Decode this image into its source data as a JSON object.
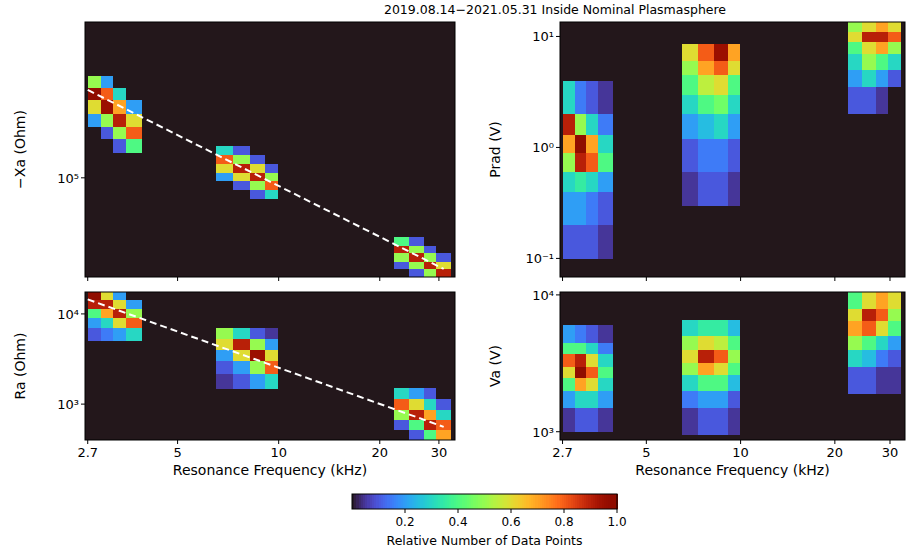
{
  "figure": {
    "title": "2019.08.14−2021.05.31  Inside Nominal Plasmasphere",
    "colorbar": {
      "label": "Relative Number of Data Points",
      "range": [
        0,
        1
      ],
      "ticks": [
        0.2,
        0.4,
        0.6,
        0.8,
        {
          "value": 1,
          "label": "1.0"
        }
      ]
    }
  },
  "chart_data": [
    {
      "type": "heatmap",
      "y_label": "−Xa (Ohm)",
      "log": true,
      "tick_labels": "y",
      "xlim": [
        2.65,
        33.5
      ],
      "xticks": [
        2.7,
        5,
        10,
        20,
        30
      ],
      "ylim": [
        26000,
        830000
      ],
      "yticks": [
        {
          "value": 100000,
          "label": "10⁵"
        }
      ],
      "heatmap": {
        "blocks": [
          {
            "x_bins": [
              2.7,
              2.95,
              3.2,
              3.5,
              3.9
            ],
            "y_bins": [
              140000,
              170000,
              200000,
              240000,
              290000,
              340000,
              400000
            ],
            "z": [
              [
                0,
                0,
                0.1,
                0.4
              ],
              [
                0,
                0.1,
                0.5,
                0.8
              ],
              [
                0.2,
                0.5,
                0.9,
                0.6
              ],
              [
                0.6,
                0.95,
                0.7,
                0.2
              ],
              [
                1.0,
                0.8,
                0.3,
                0
              ],
              [
                0.5,
                0.2,
                0,
                0
              ]
            ]
          },
          {
            "x_bins": [
              6.5,
              7.3,
              8.2,
              9.1,
              9.9
            ],
            "y_bins": [
              75000,
              85000,
              96000,
              108000,
              122000,
              138000,
              155000
            ],
            "z": [
              [
                0,
                0,
                0.1,
                0.3
              ],
              [
                0,
                0.1,
                0.5,
                0.8
              ],
              [
                0.2,
                0.6,
                0.9,
                0.5
              ],
              [
                0.6,
                0.9,
                0.6,
                0.1
              ],
              [
                0.8,
                0.5,
                0.1,
                0
              ],
              [
                0.3,
                0.1,
                0,
                0
              ]
            ]
          },
          {
            "x_bins": [
              22,
              24.5,
              27,
              29.5,
              32.5
            ],
            "y_bins": [
              26000,
              29000,
              32000,
              36000,
              40000,
              45000
            ],
            "z": [
              [
                0,
                0.1,
                0.5,
                0.9
              ],
              [
                0.1,
                0.5,
                0.9,
                0.6
              ],
              [
                0.5,
                0.9,
                0.5,
                0.1
              ],
              [
                0.9,
                0.5,
                0.1,
                0
              ],
              [
                0.4,
                0.1,
                0,
                0
              ]
            ]
          }
        ]
      },
      "series": [
        {
          "type": "line",
          "color": "#ffffff",
          "line_style": "dashed",
          "x": [
            2.7,
            31
          ],
          "values": [
            330000,
            29000
          ]
        }
      ]
    },
    {
      "type": "heatmap",
      "y_label": "Prad (V)",
      "log": true,
      "tick_labels": "y",
      "xlim": [
        2.65,
        33.5
      ],
      "xticks": [
        2.7,
        5,
        10,
        20,
        30
      ],
      "ylim": [
        0.068,
        13.5
      ],
      "yticks": [
        {
          "value": 0.1,
          "label": "10⁻¹"
        },
        {
          "value": 1,
          "label": "10⁰"
        },
        {
          "value": 10,
          "label": "10¹"
        }
      ],
      "heatmap": {
        "blocks": [
          {
            "x_bins": [
              2.7,
              2.95,
              3.2,
              3.5,
              3.9
            ],
            "y_bins": [
              0.1,
              0.2,
              0.4,
              0.6,
              0.9,
              1.3,
              2,
              4
            ],
            "z": [
              [
                0.1,
                0.1,
                0.1,
                0.05
              ],
              [
                0.2,
                0.2,
                0.15,
                0.1
              ],
              [
                0.3,
                0.35,
                0.3,
                0.2
              ],
              [
                0.5,
                0.9,
                0.8,
                0.4
              ],
              [
                0.7,
                1.0,
                0.7,
                0.3
              ],
              [
                0.9,
                0.5,
                0.3,
                0.15
              ],
              [
                0.3,
                0.15,
                0.1,
                0.05
              ]
            ]
          },
          {
            "x_bins": [
              6.5,
              7.3,
              8.2,
              9.1,
              9.9
            ],
            "y_bins": [
              0.3,
              0.6,
              1.2,
              2,
              3,
              4.5,
              6,
              8.5
            ],
            "z": [
              [
                0.05,
                0.1,
                0.1,
                0.05
              ],
              [
                0.1,
                0.15,
                0.15,
                0.1
              ],
              [
                0.2,
                0.25,
                0.3,
                0.2
              ],
              [
                0.3,
                0.4,
                0.45,
                0.3
              ],
              [
                0.4,
                0.55,
                0.6,
                0.4
              ],
              [
                0.5,
                0.7,
                0.8,
                0.6
              ],
              [
                0.6,
                0.8,
                0.95,
                0.7
              ]
            ]
          },
          {
            "x_bins": [
              22,
              24.5,
              27,
              29.5,
              32.5
            ],
            "y_bins": [
              2,
              3.5,
              5,
              7,
              9,
              11,
              13.5
            ],
            "z": [
              [
                0.1,
                0.1,
                0.05,
                0
              ],
              [
                0.2,
                0.3,
                0.2,
                0.1
              ],
              [
                0.3,
                0.5,
                0.4,
                0.3
              ],
              [
                0.4,
                0.6,
                0.7,
                0.5
              ],
              [
                0.6,
                0.9,
                0.9,
                0.8
              ],
              [
                0.5,
                0.6,
                0.7,
                0.6
              ]
            ]
          }
        ]
      }
    },
    {
      "type": "heatmap",
      "y_label": "Ra (Ohm)",
      "x_label": "Resonance Frequency (kHz)",
      "log": true,
      "tick_labels": true,
      "xlim": [
        2.65,
        33.5
      ],
      "xticks": [
        2.7,
        5,
        10,
        20,
        30
      ],
      "ylim": [
        400,
        17500
      ],
      "yticks": [
        {
          "value": 1000,
          "label": "10³"
        },
        {
          "value": 10000,
          "label": "10⁴"
        }
      ],
      "heatmap": {
        "blocks": [
          {
            "x_bins": [
              2.7,
              2.95,
              3.2,
              3.5,
              3.9
            ],
            "y_bins": [
              5000,
              7000,
              9000,
              11500,
              14500,
              17500
            ],
            "z": [
              [
                0.1,
                0.15,
                0.2,
                0.3
              ],
              [
                0.2,
                0.3,
                0.6,
                0.8
              ],
              [
                0.4,
                0.7,
                0.9,
                0.5
              ],
              [
                0.9,
                0.9,
                0.6,
                0.2
              ],
              [
                1.0,
                0.6,
                0.2,
                0
              ]
            ]
          },
          {
            "x_bins": [
              6.5,
              7.3,
              8.2,
              9.1,
              9.9
            ],
            "y_bins": [
              1500,
              2200,
              3000,
              4000,
              5300,
              7000
            ],
            "z": [
              [
                0.05,
                0.1,
                0.2,
                0.3
              ],
              [
                0.1,
                0.2,
                0.5,
                0.8
              ],
              [
                0.2,
                0.6,
                0.95,
                0.6
              ],
              [
                0.6,
                0.9,
                0.5,
                0.2
              ],
              [
                0.5,
                0.3,
                0.1,
                0.05
              ]
            ]
          },
          {
            "x_bins": [
              22,
              24.5,
              27,
              29.5,
              32.5
            ],
            "y_bins": [
              400,
              520,
              680,
              880,
              1150,
              1500
            ],
            "z": [
              [
                0,
                0.1,
                0.4,
                0.7
              ],
              [
                0.1,
                0.4,
                0.9,
                0.8
              ],
              [
                0.5,
                0.9,
                0.7,
                0.3
              ],
              [
                0.8,
                0.6,
                0.3,
                0.1
              ],
              [
                0.3,
                0.2,
                0.1,
                0
              ]
            ]
          }
        ]
      },
      "series": [
        {
          "type": "line",
          "color": "#ffffff",
          "line_style": "dashed",
          "x": [
            2.7,
            31
          ],
          "values": [
            14500,
            560
          ]
        }
      ]
    },
    {
      "type": "heatmap",
      "y_label": "Va (V)",
      "x_label": "Resonance Frequency (kHz)",
      "log": true,
      "tick_labels": true,
      "xlim": [
        2.65,
        33.5
      ],
      "xticks": [
        2.7,
        5,
        10,
        20,
        30
      ],
      "ylim": [
        870,
        10500
      ],
      "yticks": [
        {
          "value": 1000,
          "label": "10³"
        },
        {
          "value": 10000,
          "label": "10⁴"
        }
      ],
      "heatmap": {
        "blocks": [
          {
            "x_bins": [
              2.7,
              2.95,
              3.2,
              3.5,
              3.9
            ],
            "y_bins": [
              1000,
              1500,
              2000,
              2500,
              3000,
              3700,
              4500,
              6000
            ],
            "z": [
              [
                0.05,
                0.1,
                0.1,
                0.05
              ],
              [
                0.2,
                0.3,
                0.3,
                0.2
              ],
              [
                0.4,
                0.7,
                0.6,
                0.3
              ],
              [
                0.6,
                1.0,
                0.8,
                0.4
              ],
              [
                0.8,
                0.9,
                0.6,
                0.3
              ],
              [
                0.4,
                0.4,
                0.3,
                0.15
              ],
              [
                0.2,
                0.15,
                0.1,
                0.05
              ]
            ]
          },
          {
            "x_bins": [
              6.5,
              7.3,
              8.2,
              9.1,
              9.9
            ],
            "y_bins": [
              950,
              1500,
              2000,
              2600,
              3200,
              4000,
              5000,
              6500
            ],
            "z": [
              [
                0.05,
                0.1,
                0.1,
                0.05
              ],
              [
                0.15,
                0.2,
                0.2,
                0.1
              ],
              [
                0.3,
                0.4,
                0.4,
                0.25
              ],
              [
                0.5,
                0.7,
                0.6,
                0.4
              ],
              [
                0.6,
                0.9,
                0.8,
                0.5
              ],
              [
                0.5,
                0.6,
                0.55,
                0.4
              ],
              [
                0.3,
                0.35,
                0.35,
                0.25
              ]
            ]
          },
          {
            "x_bins": [
              22,
              24.5,
              27,
              29.5,
              32.5
            ],
            "y_bins": [
              1900,
              3000,
              4000,
              5000,
              6500,
              8000,
              10500
            ],
            "z": [
              [
                0.1,
                0.1,
                0.05,
                0.05
              ],
              [
                0.3,
                0.25,
                0.15,
                0.1
              ],
              [
                0.5,
                0.4,
                0.3,
                0.2
              ],
              [
                0.7,
                0.8,
                0.6,
                0.4
              ],
              [
                0.6,
                0.9,
                0.8,
                0.5
              ],
              [
                0.4,
                0.6,
                0.7,
                0.6
              ]
            ]
          }
        ]
      }
    }
  ]
}
